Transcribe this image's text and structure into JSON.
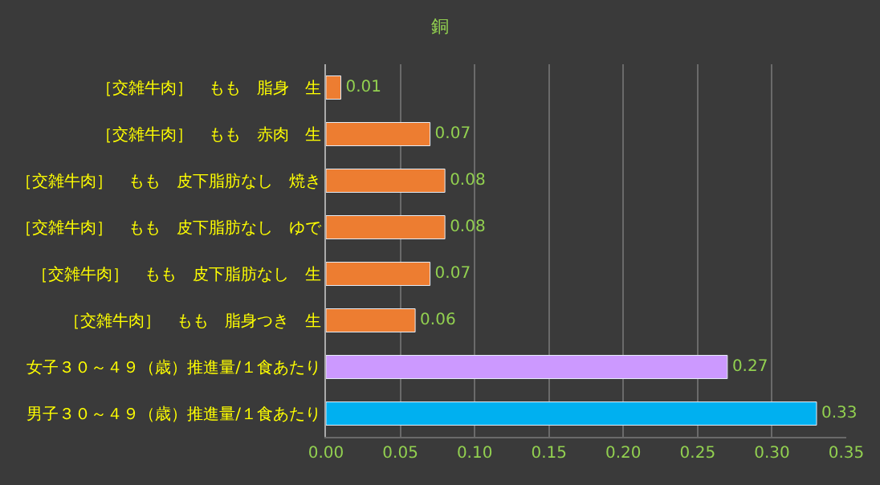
{
  "chart_data": {
    "type": "bar",
    "orientation": "horizontal",
    "title": "銅",
    "categories": [
      "［交雑牛肉］　もも　脂身　生",
      "［交雑牛肉］　もも　赤肉　生",
      "［交雑牛肉］　もも　皮下脂肪なし　焼き",
      "［交雑牛肉］　もも　皮下脂肪なし　ゆで",
      "［交雑牛肉］　もも　皮下脂肪なし　生",
      "［交雑牛肉］　もも　脂身つき　生",
      "女子３０～４９（歳）推進量/１食あたり",
      "男子３０～４９（歳）推進量/１食あたり"
    ],
    "values": [
      0.01,
      0.07,
      0.08,
      0.08,
      0.07,
      0.06,
      0.27,
      0.33
    ],
    "colors": [
      "#ed7d31",
      "#ed7d31",
      "#ed7d31",
      "#ed7d31",
      "#ed7d31",
      "#ed7d31",
      "#cc99ff",
      "#00b0f0"
    ],
    "xlim": [
      0,
      0.35
    ],
    "xticks": [
      "0.00",
      "0.05",
      "0.10",
      "0.15",
      "0.20",
      "0.25",
      "0.30",
      "0.35"
    ],
    "grid": "x",
    "data_labels": true,
    "legend": false
  }
}
